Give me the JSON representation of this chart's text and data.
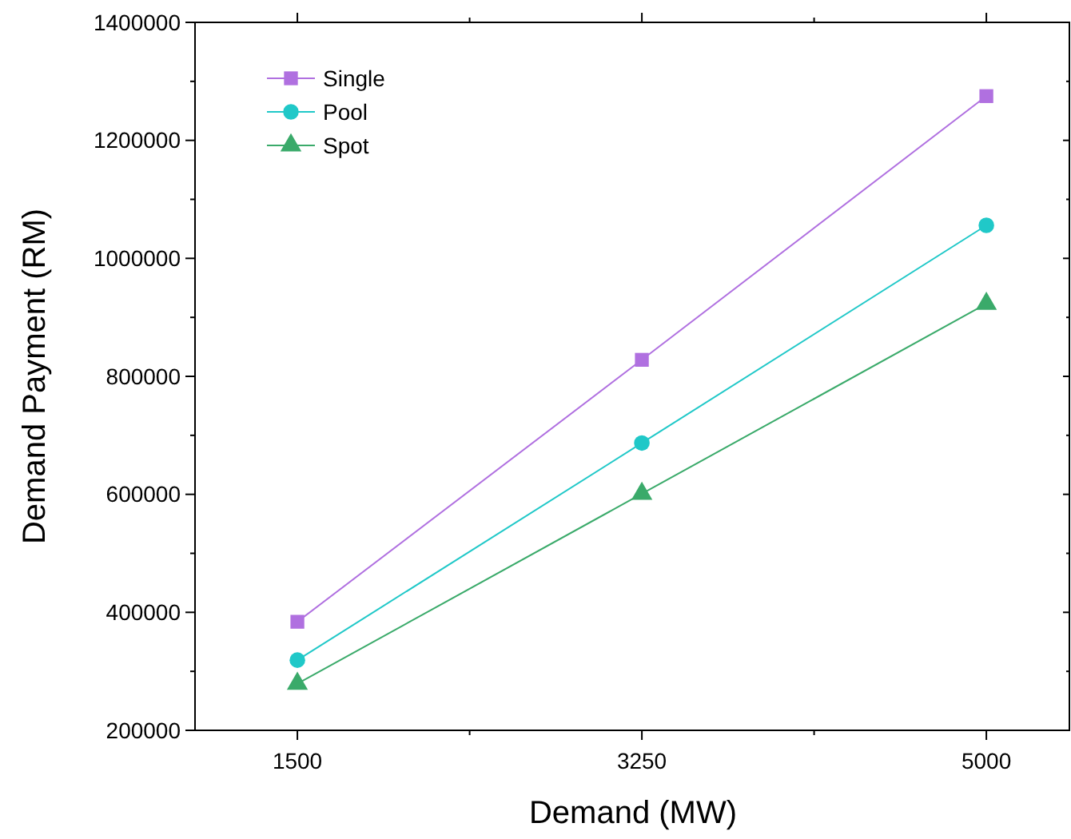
{
  "chart_data": {
    "type": "line",
    "xlabel": "Demand (MW)",
    "ylabel": "Demand Payment (RM)",
    "x": [
      1500,
      3250,
      5000
    ],
    "series": [
      {
        "name": "Single",
        "color": "#b070e0",
        "marker": "square",
        "values": [
          384000,
          828000,
          1275000
        ]
      },
      {
        "name": "Pool",
        "color": "#20c8c8",
        "marker": "circle",
        "values": [
          319000,
          687000,
          1056000
        ]
      },
      {
        "name": "Spot",
        "color": "#3aaa6a",
        "marker": "triangle",
        "values": [
          279000,
          601000,
          923000
        ]
      }
    ],
    "xlim": [
      980,
      5430
    ],
    "xticks": [
      1500,
      {
        "value": 2375,
        "label": null
      },
      3250,
      {
        "value": 4125,
        "label": null
      },
      5000
    ],
    "ylim": [
      200000,
      1400000
    ],
    "yticks": [
      200000,
      {
        "value": 300000,
        "label": null
      },
      400000,
      {
        "value": 500000,
        "label": null
      },
      600000,
      {
        "value": 700000,
        "label": null
      },
      800000,
      {
        "value": 900000,
        "label": null
      },
      1000000,
      {
        "value": 1100000,
        "label": null
      },
      1200000,
      {
        "value": 1300000,
        "label": null
      },
      1400000
    ],
    "grid": false,
    "legend": "top left",
    "line_style": "solid"
  }
}
